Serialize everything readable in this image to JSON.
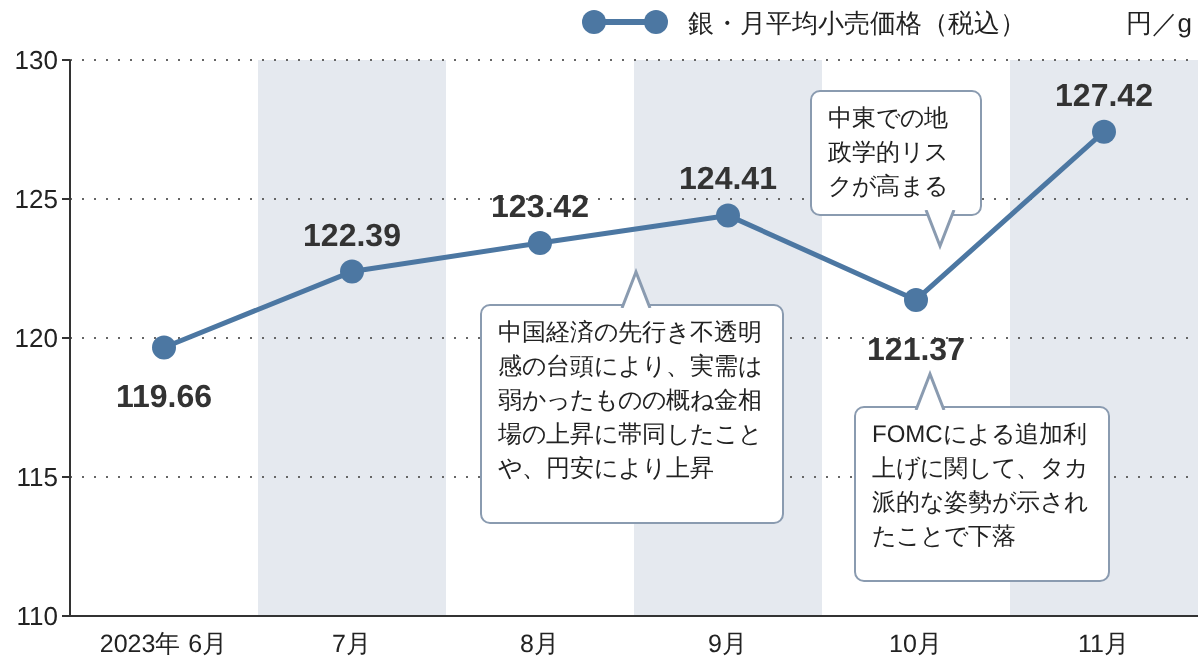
{
  "chart_data": {
    "type": "line",
    "ylabel": "円／g",
    "categories": [
      "2023年 6月",
      "7月",
      "8月",
      "9月",
      "10月",
      "11月"
    ],
    "series": [
      {
        "name": "銀・月平均小売価格（税込）",
        "color": "#4c77a2",
        "values": [
          119.66,
          122.39,
          123.42,
          124.41,
          121.37,
          127.42
        ]
      }
    ],
    "ylim": [
      110,
      130
    ],
    "yticks": [
      110,
      115,
      120,
      125,
      130
    ],
    "grid": "y",
    "legend": "top right",
    "marker": "circle",
    "data_labels": true,
    "annotations": [
      "中国経済の先行き不透明感の台頭により、実需は弱かったものの概ね金相場の上昇に帯同したことや、円安により上昇",
      "中東での地政学的リスクが高まる",
      "FOMCによる追加利上げに関して、タカ派的な姿勢が示されたことで下落"
    ]
  }
}
